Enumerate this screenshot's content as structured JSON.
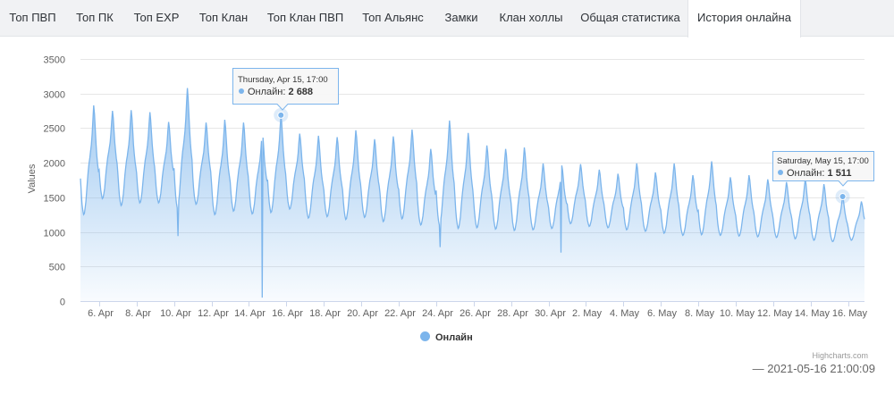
{
  "tabs": [
    {
      "label": "Топ ПВП",
      "active": false
    },
    {
      "label": "Топ ПК",
      "active": false
    },
    {
      "label": "Топ EXP",
      "active": false
    },
    {
      "label": "Топ Клан",
      "active": false
    },
    {
      "label": "Топ Клан ПВП",
      "active": false
    },
    {
      "label": "Топ Альянс",
      "active": false
    },
    {
      "label": "Замки",
      "active": false
    },
    {
      "label": "Клан холлы",
      "active": false
    },
    {
      "label": "Общая статистика",
      "active": false
    },
    {
      "label": "История онлайна",
      "active": true
    }
  ],
  "chart_data": {
    "type": "area",
    "ylabel": "Values",
    "ylim": [
      0,
      3500
    ],
    "y_ticks": [
      "0",
      "500",
      "1000",
      "1500",
      "2000",
      "2500",
      "3000",
      "3500"
    ],
    "x_ticks": [
      "6. Apr",
      "8. Apr",
      "10. Apr",
      "12. Apr",
      "14. Apr",
      "16. Apr",
      "18. Apr",
      "20. Apr",
      "22. Apr",
      "24. Apr",
      "26. Apr",
      "28. Apr",
      "30. Apr",
      "2. May",
      "4. May",
      "6. May",
      "8. May",
      "10. May",
      "12. May",
      "14. May",
      "16. May"
    ],
    "x_range": [
      "2021-04-05",
      "2021-05-16 21:00"
    ],
    "grid": true,
    "legend": "bottom-center",
    "color": "#7cb5ec",
    "series": [
      {
        "name": "Онлайн",
        "daily": [
          {
            "date": "2021-04-05",
            "min": 1250,
            "max": 2830
          },
          {
            "date": "2021-04-06",
            "min": 1480,
            "max": 2750
          },
          {
            "date": "2021-04-07",
            "min": 1380,
            "max": 2760
          },
          {
            "date": "2021-04-08",
            "min": 1420,
            "max": 2730
          },
          {
            "date": "2021-04-09",
            "min": 1420,
            "max": 2590
          },
          {
            "date": "2021-04-10",
            "min": 1350,
            "max": 3080
          },
          {
            "date": "2021-04-11",
            "min": 1400,
            "max": 2580
          },
          {
            "date": "2021-04-12",
            "min": 1250,
            "max": 2620
          },
          {
            "date": "2021-04-13",
            "min": 1300,
            "max": 2580
          },
          {
            "date": "2021-04-14",
            "min": 1260,
            "max": 2460
          },
          {
            "date": "2021-04-15",
            "min": 1280,
            "max": 2688
          },
          {
            "date": "2021-04-16",
            "min": 1330,
            "max": 2420
          },
          {
            "date": "2021-04-17",
            "min": 1200,
            "max": 2390
          },
          {
            "date": "2021-04-18",
            "min": 1220,
            "max": 2370
          },
          {
            "date": "2021-04-19",
            "min": 1180,
            "max": 2470
          },
          {
            "date": "2021-04-20",
            "min": 1210,
            "max": 2340
          },
          {
            "date": "2021-04-21",
            "min": 1150,
            "max": 2380
          },
          {
            "date": "2021-04-22",
            "min": 1190,
            "max": 2480
          },
          {
            "date": "2021-04-23",
            "min": 1100,
            "max": 2200
          },
          {
            "date": "2021-04-24",
            "min": 1100,
            "max": 2610
          },
          {
            "date": "2021-04-25",
            "min": 1050,
            "max": 2430
          },
          {
            "date": "2021-04-26",
            "min": 1060,
            "max": 2250
          },
          {
            "date": "2021-04-27",
            "min": 1040,
            "max": 2200
          },
          {
            "date": "2021-04-28",
            "min": 1020,
            "max": 2220
          },
          {
            "date": "2021-04-29",
            "min": 1030,
            "max": 1990
          },
          {
            "date": "2021-04-30",
            "min": 1050,
            "max": 1960
          },
          {
            "date": "2021-05-01",
            "min": 1120,
            "max": 1980
          },
          {
            "date": "2021-05-02",
            "min": 1080,
            "max": 1900
          },
          {
            "date": "2021-05-03",
            "min": 1060,
            "max": 1840
          },
          {
            "date": "2021-05-04",
            "min": 1030,
            "max": 1990
          },
          {
            "date": "2021-05-05",
            "min": 1010,
            "max": 1860
          },
          {
            "date": "2021-05-06",
            "min": 980,
            "max": 1990
          },
          {
            "date": "2021-05-07",
            "min": 950,
            "max": 1820
          },
          {
            "date": "2021-05-08",
            "min": 960,
            "max": 2020
          },
          {
            "date": "2021-05-09",
            "min": 950,
            "max": 1790
          },
          {
            "date": "2021-05-10",
            "min": 940,
            "max": 1820
          },
          {
            "date": "2021-05-11",
            "min": 930,
            "max": 1760
          },
          {
            "date": "2021-05-12",
            "min": 920,
            "max": 1720
          },
          {
            "date": "2021-05-13",
            "min": 900,
            "max": 1760
          },
          {
            "date": "2021-05-14",
            "min": 880,
            "max": 1690
          },
          {
            "date": "2021-05-15",
            "min": 860,
            "max": 1511
          },
          {
            "date": "2021-05-16",
            "min": 880,
            "max": 1440
          }
        ],
        "dips": [
          {
            "date": "2021-04-14 17:00",
            "value": 50
          },
          {
            "date": "2021-04-10 05:00",
            "value": 940
          },
          {
            "date": "2021-04-24 05:00",
            "value": 780
          },
          {
            "date": "2021-04-30 16:00",
            "value": 700
          }
        ]
      }
    ],
    "tooltips": [
      {
        "header": "Thursday, Apr 15, 17:00",
        "series": "Онлайн",
        "value": "2 688",
        "date": "2021-04-15 17:00",
        "y": 2688
      },
      {
        "header": "Saturday, May 15, 17:00",
        "series": "Онлайн",
        "value": "1 511",
        "date": "2021-05-15 17:00",
        "y": 1511
      }
    ]
  },
  "credits": "Highcharts.com",
  "timestamp": "— 2021-05-16 21:00:09"
}
